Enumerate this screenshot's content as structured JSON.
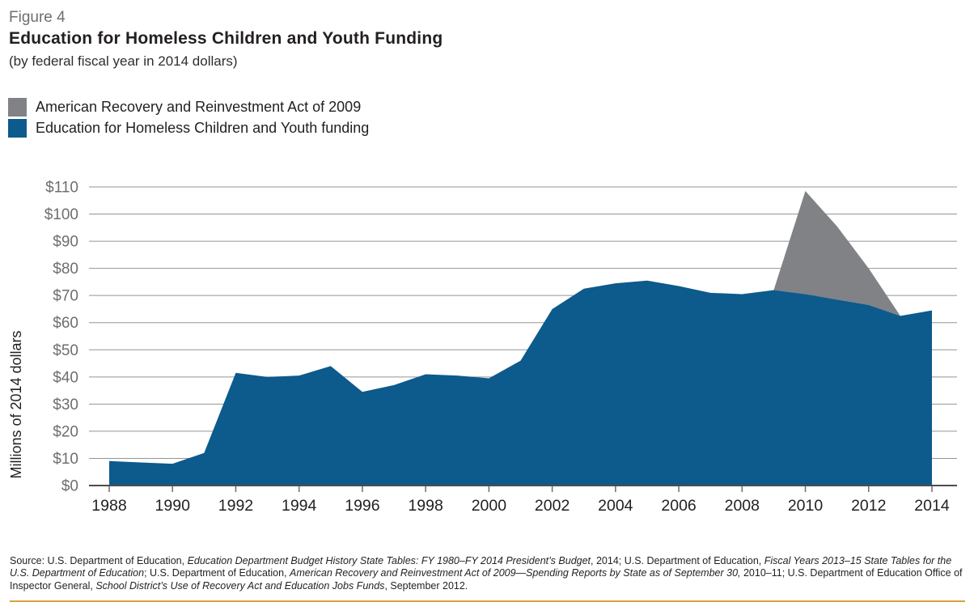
{
  "figure": {
    "label": "Figure 4"
  },
  "chart_data": {
    "type": "area",
    "stacked": true,
    "title": "Education for Homeless Children and Youth Funding",
    "subtitle": "(by federal fiscal year in 2014 dollars)",
    "ylabel": "Millions of 2014 dollars",
    "ylim": [
      0,
      110
    ],
    "grid": "horizontal-gridlines",
    "legend_position": "top-left",
    "x": [
      1988,
      1989,
      1990,
      1991,
      1992,
      1993,
      1994,
      1995,
      1996,
      1997,
      1998,
      1999,
      2000,
      2001,
      2002,
      2003,
      2004,
      2005,
      2006,
      2007,
      2008,
      2009,
      2010,
      2011,
      2012,
      2013,
      2014
    ],
    "x_tick_years": [
      1988,
      1990,
      1992,
      1994,
      1996,
      1998,
      2000,
      2002,
      2004,
      2006,
      2008,
      2010,
      2012,
      2014
    ],
    "y_ticks": [
      {
        "label": "$0",
        "value": 0
      },
      {
        "label": "$10",
        "value": 10
      },
      {
        "label": "$20",
        "value": 20
      },
      {
        "label": "$30",
        "value": 30
      },
      {
        "label": "$40",
        "value": 40
      },
      {
        "label": "$50",
        "value": 50
      },
      {
        "label": "$60",
        "value": 60
      },
      {
        "label": "$70",
        "value": 70
      },
      {
        "label": "$80",
        "value": 80
      },
      {
        "label": "$90",
        "value": 90
      },
      {
        "label": "$100",
        "value": 100
      },
      {
        "label": "$110",
        "value": 110
      }
    ],
    "series": [
      {
        "name": "Education for Homeless Children and Youth funding",
        "color": "#0D5A8C",
        "values": [
          9,
          8.5,
          8,
          12,
          41.5,
          40,
          40.5,
          44,
          34.5,
          37,
          41,
          40.5,
          39.5,
          46,
          65,
          72.5,
          74.5,
          75.5,
          73.5,
          71,
          70.5,
          72,
          70.5,
          68.5,
          66.5,
          62.5,
          64.5
        ]
      },
      {
        "name": "American Recovery and Reinvestment Act of 2009",
        "color": "#808285",
        "values": [
          0,
          0,
          0,
          0,
          0,
          0,
          0,
          0,
          0,
          0,
          0,
          0,
          0,
          0,
          0,
          0,
          0,
          0,
          0,
          0,
          0,
          0,
          38,
          27,
          13.5,
          0,
          0
        ]
      }
    ]
  },
  "legend": [
    {
      "label": "American Recovery and Reinvestment Act of 2009",
      "color": "#808285"
    },
    {
      "label": "Education for Homeless Children and Youth funding",
      "color": "#0D5A8C"
    }
  ],
  "footer": {
    "rule_color": "#D8A13D",
    "segments": [
      {
        "text": "Source: U.S. Department of Education, ",
        "italic": false
      },
      {
        "text": "Education Department Budget History State Tables: FY 1980–FY 2014 President’s Budget",
        "italic": true
      },
      {
        "text": ", 2014; U.S. Department of Education, ",
        "italic": false
      },
      {
        "text": "Fiscal Years 2013–15 State Tables for the U.S. Department of Education",
        "italic": true
      },
      {
        "text": "; U.S. Department of Education, ",
        "italic": false
      },
      {
        "text": "American Recovery and Reinvestment Act of 2009—Spending Reports by State as of September 30, ",
        "italic": true
      },
      {
        "text": "2010–11; U.S. Department of Education Office of Inspector General, ",
        "italic": false
      },
      {
        "text": "School District’s Use of Recovery Act and Education Jobs Funds",
        "italic": true
      },
      {
        "text": ", September 2012.",
        "italic": false
      }
    ]
  }
}
